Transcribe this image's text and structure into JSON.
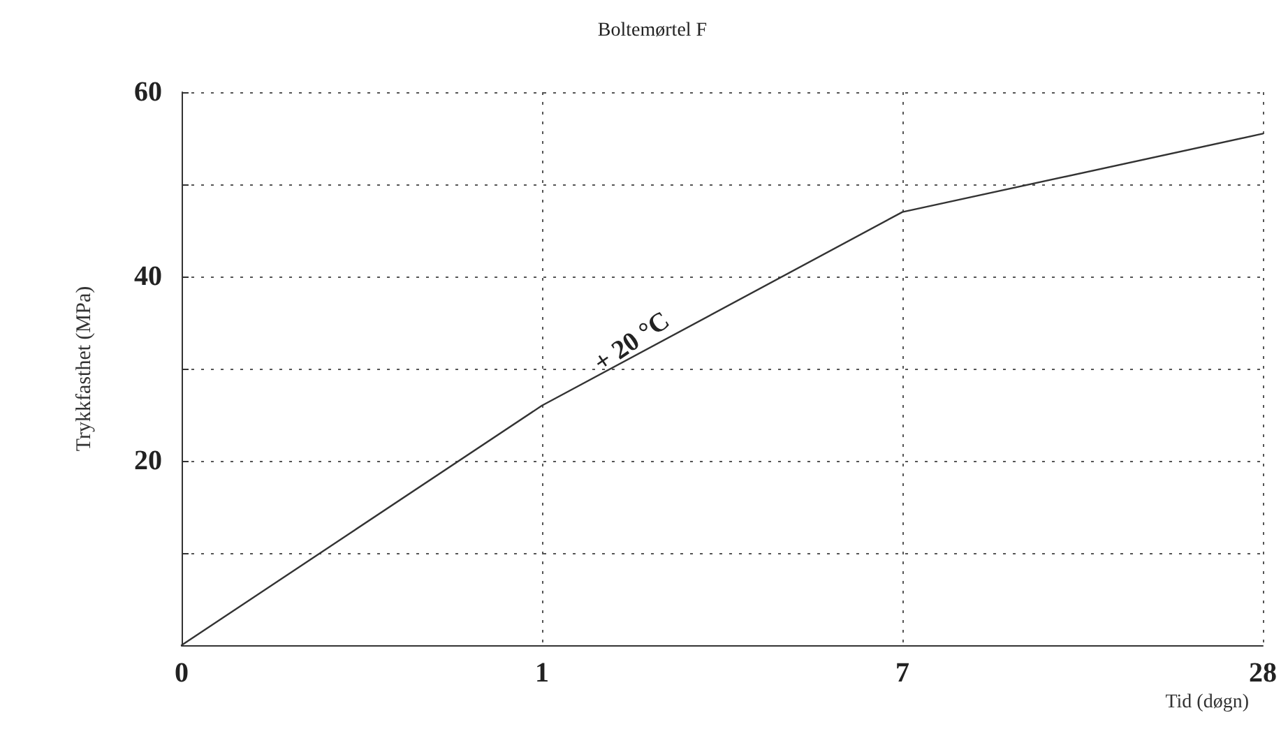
{
  "chart_data": {
    "type": "line",
    "title": "Boltemørtel F",
    "xlabel": "Tid (døgn)",
    "ylabel": "Trykkfasthet (MPa)",
    "categories": [
      "0",
      "1",
      "7",
      "28"
    ],
    "series": [
      {
        "color": "#333333",
        "values": [
          0,
          26,
          47,
          55.5
        ]
      }
    ],
    "ylim": [
      0,
      60
    ],
    "yticks": [
      {
        "value": 0,
        "label": null
      },
      {
        "value": 10,
        "label": null
      },
      20,
      {
        "value": 30,
        "label": null
      },
      40,
      {
        "value": 50,
        "label": null
      },
      60
    ],
    "grid": true,
    "marker": "none",
    "line_style": "solid",
    "annotations": [
      "+ 20 °C"
    ]
  }
}
